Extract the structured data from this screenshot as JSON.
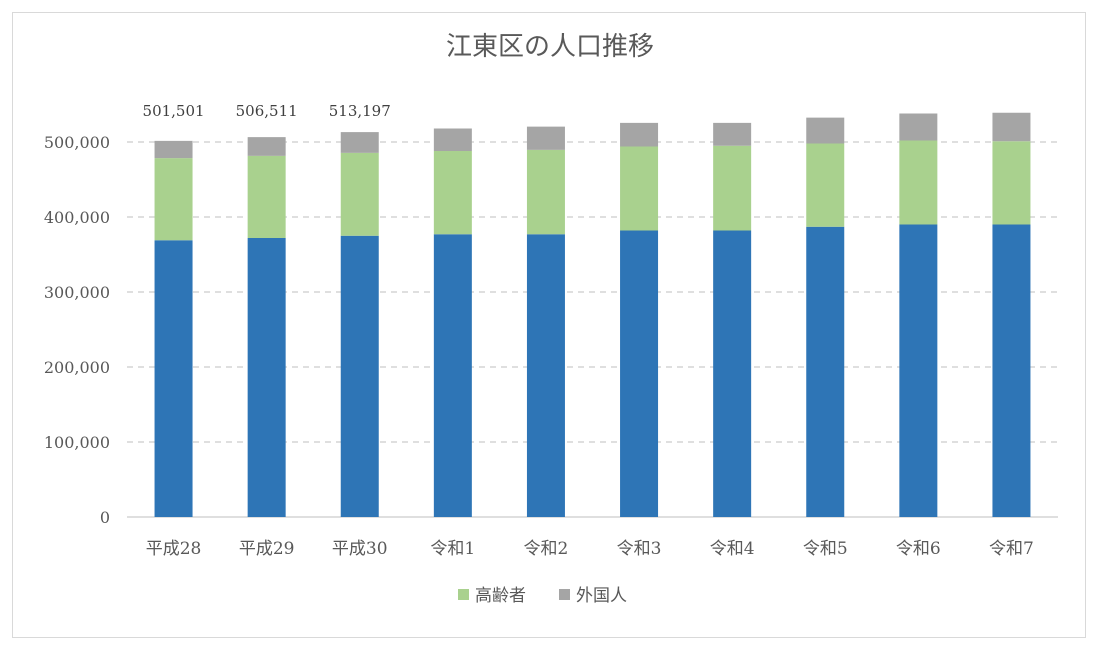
{
  "chart_data": {
    "type": "bar",
    "stacked": true,
    "title": "江東区の人口推移",
    "categories": [
      "平成28",
      "平成29",
      "平成30",
      "令和1",
      "令和2",
      "令和3",
      "令和4",
      "令和5",
      "令和6",
      "令和7"
    ],
    "series": [
      {
        "name": "",
        "color": "#2e75b6",
        "values": [
          369000,
          372000,
          375000,
          377000,
          377000,
          382000,
          382000,
          387000,
          390000,
          390000
        ]
      },
      {
        "name": "高齢者",
        "color": "#a9d18e",
        "values": [
          109500,
          109500,
          110500,
          111000,
          112500,
          112000,
          113000,
          111000,
          112000,
          111000
        ]
      },
      {
        "name": "外国人",
        "color": "#a5a5a5",
        "values": [
          23000,
          25000,
          27700,
          30000,
          31000,
          31500,
          30500,
          34500,
          36000,
          38000
        ]
      }
    ],
    "data_labels": [
      "501,501",
      "506,511",
      "513,197",
      "",
      "",
      "",
      "",
      "",
      "",
      ""
    ],
    "ylim": [
      0,
      500000
    ],
    "yticks": [
      0,
      100000,
      200000,
      300000,
      400000,
      500000
    ],
    "ytick_labels": [
      "0",
      "100,000",
      "200,000",
      "300,000",
      "400,000",
      "500,000"
    ],
    "grid": true,
    "legend_position": "bottom"
  }
}
